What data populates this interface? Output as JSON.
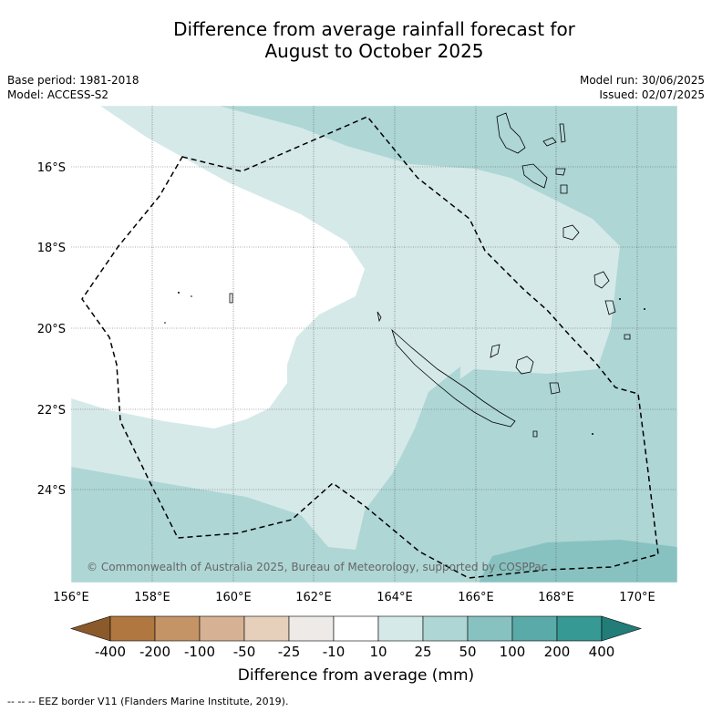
{
  "title_line1": "Difference from average rainfall forecast for",
  "title_line2": "August to October 2025",
  "meta_left": [
    "Base period: 1981-2018",
    "Model: ACCESS-S2"
  ],
  "meta_right": [
    "Model run: 30/06/2025",
    "Issued: 02/07/2025"
  ],
  "lat_labels": [
    "16°S",
    "18°S",
    "20°S",
    "22°S",
    "24°S"
  ],
  "lon_labels": [
    "156°E",
    "158°E",
    "160°E",
    "162°E",
    "164°E",
    "166°E",
    "168°E",
    "170°E"
  ],
  "copyright": "© Commonwealth of Australia 2025, Bureau of Meteorology, supported by COSPPac",
  "colorbar": {
    "ticks": [
      "-400",
      "-200",
      "-100",
      "-50",
      "-25",
      "-10",
      "10",
      "25",
      "50",
      "100",
      "200",
      "400"
    ],
    "colors": [
      "#b07840",
      "#c49466",
      "#d6b193",
      "#e6d0bb",
      "#edeae8",
      "#ffffff",
      "#d5e9e8",
      "#aed6d5",
      "#87c2c1",
      "#5aaaaa",
      "#369994",
      "#227d79",
      "#8b5a2b"
    ],
    "label": "Difference from average (mm)"
  },
  "footer": "-- -- -- EEZ border V11 (Flanders Marine Institute, 2019)."
}
